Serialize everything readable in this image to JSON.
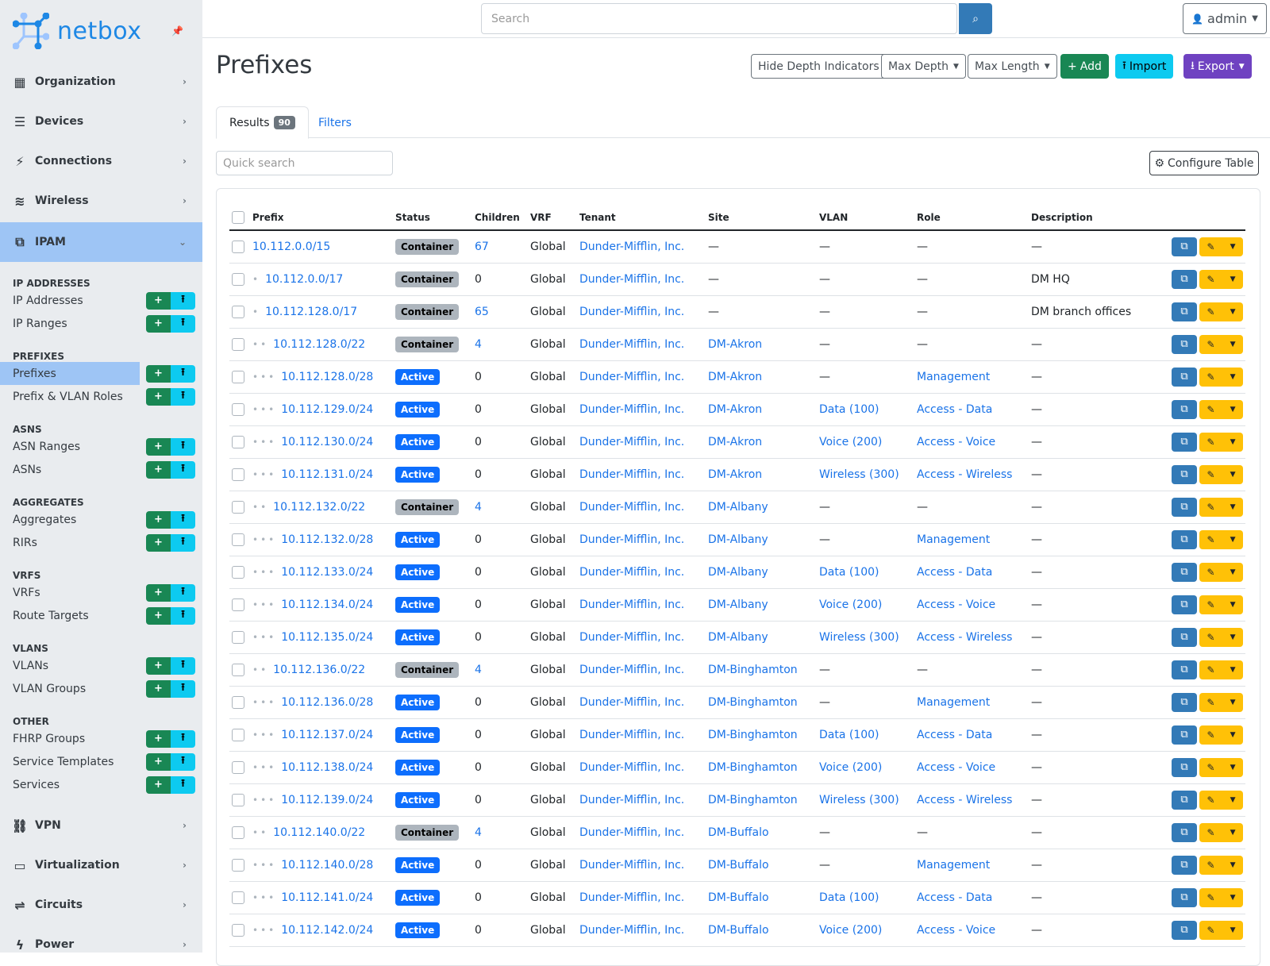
{
  "brand": {
    "name": "netbox"
  },
  "sidebar": {
    "top": [
      {
        "label": "Organization",
        "icon": "building-icon",
        "glyph": "▦"
      },
      {
        "label": "Devices",
        "icon": "server-icon",
        "glyph": "☰"
      },
      {
        "label": "Connections",
        "icon": "plug-icon",
        "glyph": "⚡"
      },
      {
        "label": "Wireless",
        "icon": "wifi-icon",
        "glyph": "≋"
      }
    ],
    "ipam": {
      "label": "IPAM",
      "glyph": "⧉"
    },
    "sections": [
      {
        "title": "IP ADDRESSES",
        "items": [
          "IP Addresses",
          "IP Ranges"
        ]
      },
      {
        "title": "PREFIXES",
        "items": [
          "Prefixes",
          "Prefix & VLAN Roles"
        ]
      },
      {
        "title": "ASNS",
        "items": [
          "ASN Ranges",
          "ASNs"
        ]
      },
      {
        "title": "AGGREGATES",
        "items": [
          "Aggregates",
          "RIRs"
        ]
      },
      {
        "title": "VRFS",
        "items": [
          "VRFs",
          "Route Targets"
        ]
      },
      {
        "title": "VLANS",
        "items": [
          "VLANs",
          "VLAN Groups"
        ]
      },
      {
        "title": "OTHER",
        "items": [
          "FHRP Groups",
          "Service Templates",
          "Services"
        ]
      }
    ],
    "active_item": "Prefixes",
    "bottom": [
      {
        "label": "VPN",
        "icon": "vpn-icon",
        "glyph": "⛓"
      },
      {
        "label": "Virtualization",
        "icon": "monitor-icon",
        "glyph": "▭"
      },
      {
        "label": "Circuits",
        "icon": "circuits-icon",
        "glyph": "⇌"
      },
      {
        "label": "Power",
        "icon": "power-icon",
        "glyph": "ϟ"
      }
    ]
  },
  "topbar": {
    "search_placeholder": "Search",
    "user": "admin"
  },
  "page": {
    "title": "Prefixes",
    "buttons": {
      "hide_depth": "Hide Depth Indicators",
      "max_depth": "Max Depth",
      "max_length": "Max Length",
      "add": "Add",
      "import": "Import",
      "export": "Export"
    },
    "tabs": {
      "results": "Results",
      "results_count": "90",
      "filters": "Filters"
    },
    "quick_search_placeholder": "Quick search",
    "configure_table": "Configure Table"
  },
  "colors": {
    "add": "#198754",
    "import": "#0dcaf0",
    "export": "#6f42c1",
    "active": "#0d6efd",
    "container": "#adb5bd",
    "edit": "#ffc107",
    "clone": "#337ab7",
    "ipam_active": "#9ec5f5"
  },
  "table": {
    "columns": [
      "Prefix",
      "Status",
      "Children",
      "VRF",
      "Tenant",
      "Site",
      "VLAN",
      "Role",
      "Description"
    ],
    "rows": [
      {
        "prefix": "10.112.0.0/15",
        "depth": 0,
        "status": "Container",
        "children": "67",
        "vrf": "Global",
        "tenant": "Dunder-Mifflin, Inc.",
        "site": "—",
        "vlan": "—",
        "role": "—",
        "description": "—"
      },
      {
        "prefix": "10.112.0.0/17",
        "depth": 1,
        "status": "Container",
        "children": "0",
        "vrf": "Global",
        "tenant": "Dunder-Mifflin, Inc.",
        "site": "—",
        "vlan": "—",
        "role": "—",
        "description": "DM HQ"
      },
      {
        "prefix": "10.112.128.0/17",
        "depth": 1,
        "status": "Container",
        "children": "65",
        "vrf": "Global",
        "tenant": "Dunder-Mifflin, Inc.",
        "site": "—",
        "vlan": "—",
        "role": "—",
        "description": "DM branch offices"
      },
      {
        "prefix": "10.112.128.0/22",
        "depth": 2,
        "status": "Container",
        "children": "4",
        "vrf": "Global",
        "tenant": "Dunder-Mifflin, Inc.",
        "site": "DM-Akron",
        "vlan": "—",
        "role": "—",
        "description": "—"
      },
      {
        "prefix": "10.112.128.0/28",
        "depth": 3,
        "status": "Active",
        "children": "0",
        "vrf": "Global",
        "tenant": "Dunder-Mifflin, Inc.",
        "site": "DM-Akron",
        "vlan": "—",
        "role": "Management",
        "description": "—"
      },
      {
        "prefix": "10.112.129.0/24",
        "depth": 3,
        "status": "Active",
        "children": "0",
        "vrf": "Global",
        "tenant": "Dunder-Mifflin, Inc.",
        "site": "DM-Akron",
        "vlan": "Data (100)",
        "role": "Access - Data",
        "description": "—"
      },
      {
        "prefix": "10.112.130.0/24",
        "depth": 3,
        "status": "Active",
        "children": "0",
        "vrf": "Global",
        "tenant": "Dunder-Mifflin, Inc.",
        "site": "DM-Akron",
        "vlan": "Voice (200)",
        "role": "Access - Voice",
        "description": "—"
      },
      {
        "prefix": "10.112.131.0/24",
        "depth": 3,
        "status": "Active",
        "children": "0",
        "vrf": "Global",
        "tenant": "Dunder-Mifflin, Inc.",
        "site": "DM-Akron",
        "vlan": "Wireless (300)",
        "role": "Access - Wireless",
        "description": "—"
      },
      {
        "prefix": "10.112.132.0/22",
        "depth": 2,
        "status": "Container",
        "children": "4",
        "vrf": "Global",
        "tenant": "Dunder-Mifflin, Inc.",
        "site": "DM-Albany",
        "vlan": "—",
        "role": "—",
        "description": "—"
      },
      {
        "prefix": "10.112.132.0/28",
        "depth": 3,
        "status": "Active",
        "children": "0",
        "vrf": "Global",
        "tenant": "Dunder-Mifflin, Inc.",
        "site": "DM-Albany",
        "vlan": "—",
        "role": "Management",
        "description": "—"
      },
      {
        "prefix": "10.112.133.0/24",
        "depth": 3,
        "status": "Active",
        "children": "0",
        "vrf": "Global",
        "tenant": "Dunder-Mifflin, Inc.",
        "site": "DM-Albany",
        "vlan": "Data (100)",
        "role": "Access - Data",
        "description": "—"
      },
      {
        "prefix": "10.112.134.0/24",
        "depth": 3,
        "status": "Active",
        "children": "0",
        "vrf": "Global",
        "tenant": "Dunder-Mifflin, Inc.",
        "site": "DM-Albany",
        "vlan": "Voice (200)",
        "role": "Access - Voice",
        "description": "—"
      },
      {
        "prefix": "10.112.135.0/24",
        "depth": 3,
        "status": "Active",
        "children": "0",
        "vrf": "Global",
        "tenant": "Dunder-Mifflin, Inc.",
        "site": "DM-Albany",
        "vlan": "Wireless (300)",
        "role": "Access - Wireless",
        "description": "—"
      },
      {
        "prefix": "10.112.136.0/22",
        "depth": 2,
        "status": "Container",
        "children": "4",
        "vrf": "Global",
        "tenant": "Dunder-Mifflin, Inc.",
        "site": "DM-Binghamton",
        "vlan": "—",
        "role": "—",
        "description": "—"
      },
      {
        "prefix": "10.112.136.0/28",
        "depth": 3,
        "status": "Active",
        "children": "0",
        "vrf": "Global",
        "tenant": "Dunder-Mifflin, Inc.",
        "site": "DM-Binghamton",
        "vlan": "—",
        "role": "Management",
        "description": "—"
      },
      {
        "prefix": "10.112.137.0/24",
        "depth": 3,
        "status": "Active",
        "children": "0",
        "vrf": "Global",
        "tenant": "Dunder-Mifflin, Inc.",
        "site": "DM-Binghamton",
        "vlan": "Data (100)",
        "role": "Access - Data",
        "description": "—"
      },
      {
        "prefix": "10.112.138.0/24",
        "depth": 3,
        "status": "Active",
        "children": "0",
        "vrf": "Global",
        "tenant": "Dunder-Mifflin, Inc.",
        "site": "DM-Binghamton",
        "vlan": "Voice (200)",
        "role": "Access - Voice",
        "description": "—"
      },
      {
        "prefix": "10.112.139.0/24",
        "depth": 3,
        "status": "Active",
        "children": "0",
        "vrf": "Global",
        "tenant": "Dunder-Mifflin, Inc.",
        "site": "DM-Binghamton",
        "vlan": "Wireless (300)",
        "role": "Access - Wireless",
        "description": "—"
      },
      {
        "prefix": "10.112.140.0/22",
        "depth": 2,
        "status": "Container",
        "children": "4",
        "vrf": "Global",
        "tenant": "Dunder-Mifflin, Inc.",
        "site": "DM-Buffalo",
        "vlan": "—",
        "role": "—",
        "description": "—"
      },
      {
        "prefix": "10.112.140.0/28",
        "depth": 3,
        "status": "Active",
        "children": "0",
        "vrf": "Global",
        "tenant": "Dunder-Mifflin, Inc.",
        "site": "DM-Buffalo",
        "vlan": "—",
        "role": "Management",
        "description": "—"
      },
      {
        "prefix": "10.112.141.0/24",
        "depth": 3,
        "status": "Active",
        "children": "0",
        "vrf": "Global",
        "tenant": "Dunder-Mifflin, Inc.",
        "site": "DM-Buffalo",
        "vlan": "Data (100)",
        "role": "Access - Data",
        "description": "—"
      },
      {
        "prefix": "10.112.142.0/24",
        "depth": 3,
        "status": "Active",
        "children": "0",
        "vrf": "Global",
        "tenant": "Dunder-Mifflin, Inc.",
        "site": "DM-Buffalo",
        "vlan": "Voice (200)",
        "role": "Access - Voice",
        "description": "—"
      }
    ]
  }
}
